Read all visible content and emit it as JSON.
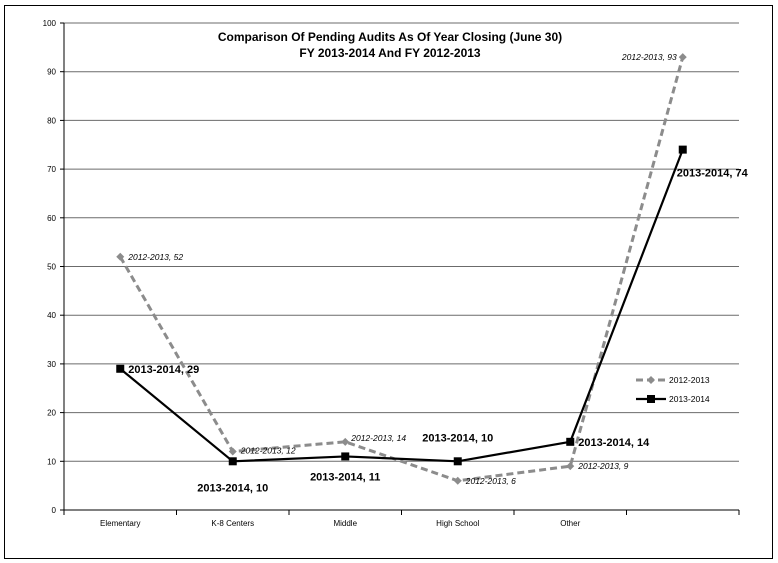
{
  "chart_data": {
    "type": "line",
    "title_line1": "Comparison Of Pending Audits As Of  Year Closing (June 30)",
    "title_line2": "FY 2013-2014  And FY 2012-2013",
    "categories": [
      "Elementary",
      "K-8 Centers",
      "Middle",
      "High School",
      "Other",
      ""
    ],
    "ylim": [
      0,
      100
    ],
    "yticks": [
      0,
      10,
      20,
      30,
      40,
      50,
      60,
      70,
      80,
      90,
      100
    ],
    "grid": true,
    "legend_position": "right",
    "series": [
      {
        "name": "2012-2013",
        "values": [
          52,
          12,
          14,
          6,
          9,
          93
        ],
        "labels": [
          "2012-2013, 52",
          "2012-2013, 12",
          "2012-2013, 14",
          "2012-2013, 6",
          "2012-2013, 9",
          "2012-2013, 93"
        ],
        "color": "#8c8c8c",
        "style": "dashed",
        "marker": "diamond"
      },
      {
        "name": "2013-2014",
        "values": [
          29,
          10,
          11,
          10,
          14,
          74
        ],
        "labels": [
          "2013-2014, 29",
          "2013-2014, 10",
          "2013-2014, 11",
          "2013-2014, 10",
          "2013-2014, 14",
          "2013-2014, 74"
        ],
        "color": "#000000",
        "style": "solid",
        "marker": "square"
      }
    ]
  }
}
